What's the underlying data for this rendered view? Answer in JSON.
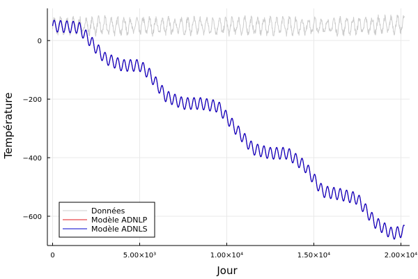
{
  "chart_data": {
    "type": "line",
    "xlabel": "Jour",
    "ylabel": "Température",
    "xlim": [
      -300,
      20500
    ],
    "ylim": [
      -700,
      110
    ],
    "grid": true,
    "legend_position": "bottom-left",
    "x_ticks": [
      {
        "value": 0,
        "label": "0"
      },
      {
        "value": 5000,
        "label": "5.00×10³"
      },
      {
        "value": 10000,
        "label": "1.00×10⁴"
      },
      {
        "value": 15000,
        "label": "1.50×10⁴"
      },
      {
        "value": 20000,
        "label": "2.00×10⁴"
      }
    ],
    "y_ticks": [
      {
        "value": 0,
        "label": "0"
      },
      {
        "value": -200,
        "label": "−200"
      },
      {
        "value": -400,
        "label": "−400"
      },
      {
        "value": -600,
        "label": "−600"
      }
    ],
    "series": [
      {
        "name": "Données",
        "color": "#cccccc",
        "style": "noisy-seasonal",
        "x": [
          0,
          2500,
          5000,
          7500,
          10000,
          12500,
          15000,
          17500,
          20200
        ],
        "y": [
          50,
          50,
          50,
          50,
          50,
          50,
          50,
          50,
          55
        ],
        "amplitude": 25,
        "period_days": 365
      },
      {
        "name": "Modèle ADNLP",
        "color": "#e31a1c",
        "style": "seasonal",
        "x": [
          0,
          1500,
          3000,
          4000,
          5000,
          5500,
          6500,
          7500,
          8500,
          9500,
          10500,
          11500,
          12500,
          13500,
          14500,
          15500,
          16500,
          17500,
          18500,
          19500,
          20200
        ],
        "y": [
          50,
          45,
          -60,
          -85,
          -85,
          -110,
          -190,
          -215,
          -215,
          -225,
          -300,
          -370,
          -385,
          -385,
          -430,
          -515,
          -525,
          -540,
          -620,
          -660,
          -650
        ],
        "amplitude": 20,
        "period_days": 365
      },
      {
        "name": "Modèle ADNLS",
        "color": "#0000cc",
        "style": "seasonal",
        "x": [
          0,
          1500,
          3000,
          4000,
          5000,
          5500,
          6500,
          7500,
          8500,
          9500,
          10500,
          11500,
          12500,
          13500,
          14500,
          15500,
          16500,
          17500,
          18500,
          19500,
          20200
        ],
        "y": [
          50,
          45,
          -60,
          -85,
          -85,
          -110,
          -190,
          -215,
          -215,
          -225,
          -300,
          -370,
          -385,
          -385,
          -430,
          -515,
          -525,
          -540,
          -620,
          -660,
          -650
        ],
        "amplitude": 20,
        "period_days": 365
      }
    ]
  }
}
